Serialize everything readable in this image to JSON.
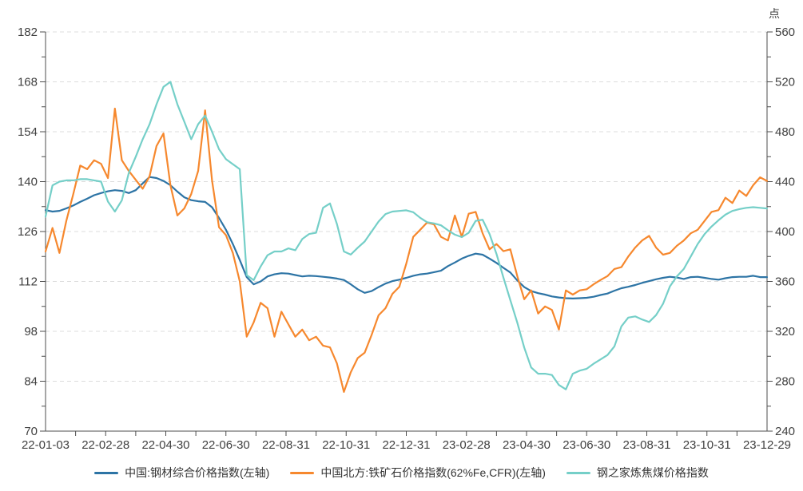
{
  "unit_label": "点",
  "colors": {
    "steel_blue": "#2d74a5",
    "iron_orange": "#f6882e",
    "coal_teal": "#75cfc8",
    "axis_line": "#4d4d4d",
    "axis_text": "#404040",
    "gridline": "#dcdcdc",
    "legend_text": "#333333"
  },
  "legend": {
    "items": [
      {
        "label": "中国:钢材综合价格指数(左轴)",
        "color": "#2d74a5"
      },
      {
        "label": "中国北方:铁矿石价格指数(62%Fe,CFR)(左轴)",
        "color": "#f6882e"
      },
      {
        "label": "钢之家炼焦煤价格指数",
        "color": "#75cfc8"
      }
    ]
  },
  "chart_data": {
    "type": "line",
    "title": "",
    "x_tick_labels": [
      "22-01-03",
      "22-02-28",
      "22-04-30",
      "22-06-30",
      "22-08-31",
      "22-10-31",
      "22-12-31",
      "23-02-28",
      "23-04-30",
      "23-06-30",
      "23-08-31",
      "23-10-31",
      "23-12-29"
    ],
    "x_range_note": "daily trading data from 2022-01-03 to 2023-12-29, series sampled ~weekly (105 points, evenly spaced)",
    "left_axis": {
      "min": 70,
      "max": 182,
      "tick_step": 14,
      "ticks": [
        70,
        84,
        98,
        112,
        126,
        140,
        154,
        168,
        182
      ]
    },
    "right_axis": {
      "min": 240,
      "max": 560,
      "tick_step": 40,
      "ticks": [
        240,
        280,
        320,
        360,
        400,
        440,
        480,
        520,
        560
      ],
      "unit": "点"
    },
    "grid": "horizontal dashed",
    "legend_position": "bottom center",
    "series": [
      {
        "name": "中国:钢材综合价格指数(左轴)",
        "axis": "left",
        "color": "#2d74a5",
        "values": [
          132.0,
          131.6,
          131.8,
          132.5,
          133.3,
          134.3,
          135.2,
          136.2,
          136.8,
          137.3,
          137.6,
          137.4,
          136.8,
          137.6,
          139.5,
          141.3,
          141.0,
          140.2,
          139.0,
          137.2,
          135.6,
          134.8,
          134.5,
          134.3,
          132.8,
          129.8,
          126.5,
          122.5,
          118.0,
          113.2,
          111.2,
          112.0,
          113.4,
          114.0,
          114.3,
          114.2,
          113.8,
          113.4,
          113.6,
          113.5,
          113.3,
          113.1,
          112.8,
          112.4,
          111.2,
          109.8,
          108.8,
          109.3,
          110.4,
          111.4,
          112.1,
          112.5,
          113.0,
          113.6,
          114.0,
          114.2,
          114.6,
          115.0,
          116.3,
          117.3,
          118.4,
          119.2,
          119.8,
          119.5,
          118.4,
          117.2,
          115.8,
          114.5,
          112.3,
          110.4,
          109.3,
          108.7,
          108.3,
          107.8,
          107.5,
          107.3,
          107.2,
          107.3,
          107.4,
          107.7,
          108.2,
          108.6,
          109.4,
          110.1,
          110.5,
          111.0,
          111.6,
          112.1,
          112.6,
          113.0,
          113.3,
          113.1,
          112.7,
          113.2,
          113.3,
          113.0,
          112.7,
          112.5,
          112.9,
          113.2,
          113.3,
          113.3,
          113.6,
          113.2,
          113.2
        ]
      },
      {
        "name": "中国北方:铁矿石价格指数(62%Fe,CFR)(左轴)",
        "axis": "left",
        "color": "#f6882e",
        "values": [
          120.4,
          127.0,
          120.0,
          129.0,
          136.5,
          144.5,
          143.5,
          146.0,
          145.0,
          141.0,
          160.5,
          146.0,
          143.0,
          140.5,
          138.0,
          141.5,
          150.0,
          153.5,
          139.0,
          130.5,
          132.5,
          136.5,
          143.0,
          160.0,
          140.3,
          127.2,
          125.0,
          120.0,
          112.0,
          96.5,
          100.5,
          106.0,
          104.5,
          96.5,
          103.5,
          100.0,
          96.5,
          98.5,
          95.5,
          96.5,
          94.0,
          93.5,
          89.0,
          81.0,
          86.5,
          90.5,
          92.0,
          97.0,
          102.5,
          104.5,
          108.5,
          110.5,
          117.0,
          124.5,
          126.5,
          128.5,
          128.0,
          124.5,
          123.5,
          130.5,
          124.5,
          131.0,
          131.5,
          125.5,
          121.0,
          122.5,
          120.5,
          121.0,
          113.5,
          107.0,
          109.5,
          103.0,
          105.0,
          104.0,
          98.5,
          109.5,
          108.3,
          109.5,
          109.8,
          111.2,
          112.4,
          113.5,
          115.5,
          116.0,
          119.0,
          121.5,
          123.5,
          124.8,
          121.5,
          119.5,
          120.0,
          122.0,
          123.5,
          125.5,
          126.5,
          129.0,
          131.5,
          132.0,
          135.5,
          134.0,
          137.5,
          136.0,
          139.0,
          141.2,
          140.2
        ]
      },
      {
        "name": "钢之家炼焦煤价格指数",
        "axis": "right",
        "color": "#75cfc8",
        "values": [
          412,
          437,
          440,
          441,
          441,
          442,
          442,
          441,
          440,
          424,
          416,
          425,
          447,
          460,
          474,
          486,
          502,
          516,
          520,
          502,
          488,
          474,
          486,
          493,
          480,
          466,
          458,
          454,
          450,
          365,
          361,
          372,
          381,
          384,
          384,
          386.5,
          385,
          394,
          398,
          399,
          419,
          422.5,
          406,
          384,
          381.5,
          387,
          392,
          400,
          408,
          414,
          416,
          416.5,
          417,
          415.5,
          411,
          407.5,
          406.5,
          405,
          401,
          397.5,
          395.5,
          399,
          408.5,
          409.5,
          398,
          382,
          363,
          345,
          327,
          307,
          291,
          286,
          286,
          285,
          277,
          273.5,
          286,
          288.5,
          290,
          294,
          297.5,
          301,
          308,
          324,
          331,
          332,
          329.5,
          327.5,
          333,
          342,
          356,
          364,
          370,
          380,
          390,
          398,
          404,
          409,
          413.5,
          416.5,
          418,
          419,
          419.5,
          419,
          418.5
        ]
      }
    ]
  }
}
